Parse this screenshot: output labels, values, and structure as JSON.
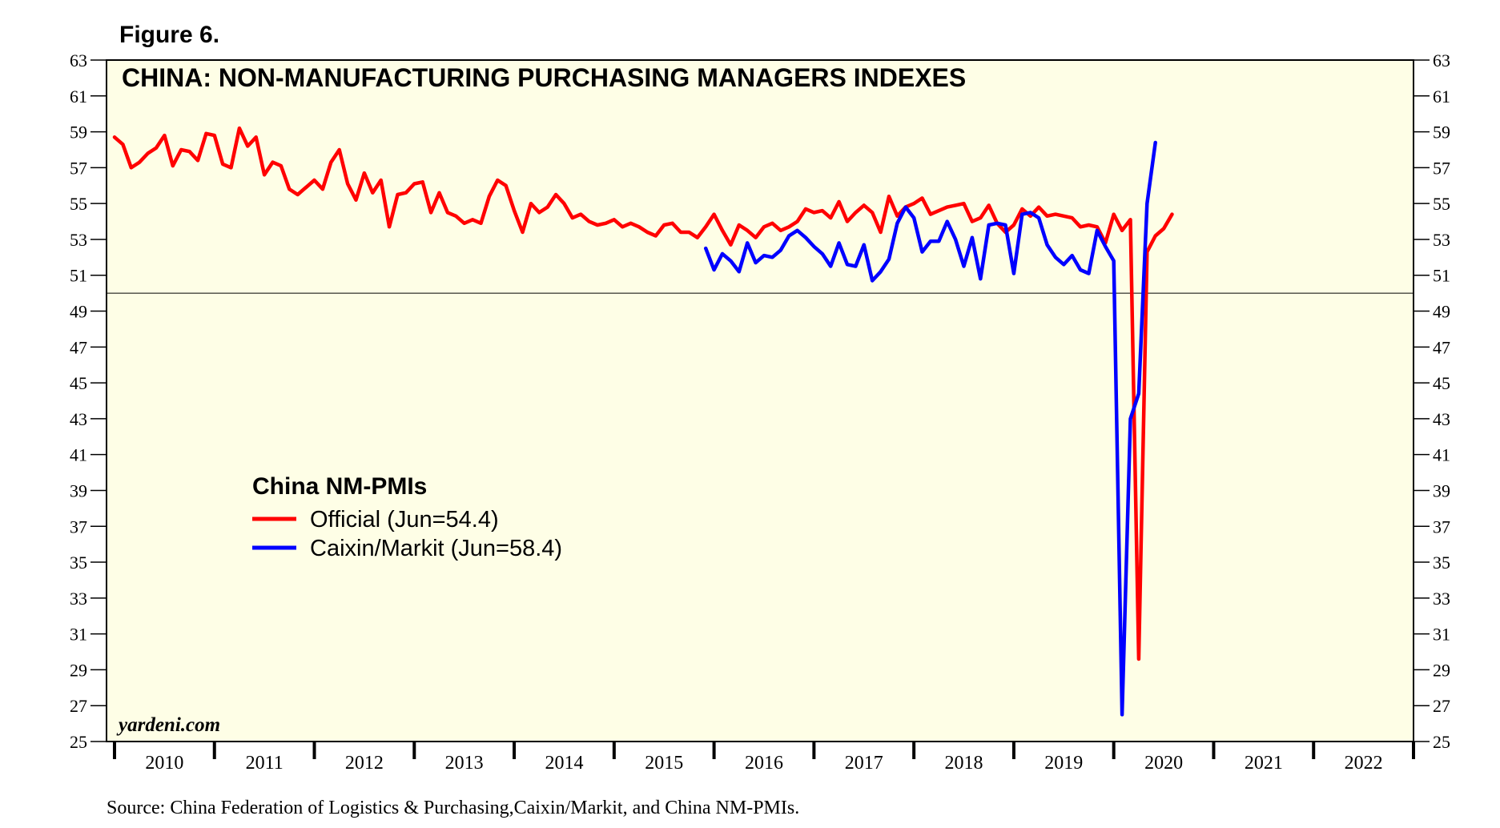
{
  "figure_label": "Figure 6.",
  "source": "Source: China Federation of Logistics & Purchasing,Caixin/Markit, and China NM-PMIs.",
  "watermark": "yardeni.com",
  "colors": {
    "plot_bg": "#fefee6",
    "official": "#ff0000",
    "caixin": "#0000ff",
    "reference": "#000000"
  },
  "chart_data": {
    "type": "line",
    "title": "CHINA: NON-MANUFACTURING PURCHASING MANAGERS INDEXES",
    "xlabel": "",
    "ylabel": "",
    "ylim": [
      25,
      63
    ],
    "xlim": [
      2009.92,
      2023.0
    ],
    "y_ticks": [
      63,
      61,
      59,
      57,
      55,
      53,
      51,
      49,
      47,
      45,
      43,
      41,
      39,
      37,
      35,
      33,
      31,
      29,
      27,
      25
    ],
    "year_labels": [
      "2010",
      "2011",
      "2012",
      "2013",
      "2014",
      "2015",
      "2016",
      "2017",
      "2018",
      "2019",
      "2020",
      "2021",
      "2022"
    ],
    "reference_line": 50,
    "legend": {
      "title": "China NM-PMIs",
      "entries": [
        "Official (Jun=54.4)",
        "Caixin/Markit (Jun=58.4)"
      ]
    },
    "series": [
      {
        "name": "Official",
        "color": "#ff0000",
        "start": 2010.0,
        "step": 0.0833333,
        "values": [
          58.7,
          58.3,
          57.0,
          57.3,
          57.8,
          58.1,
          58.8,
          57.1,
          58.0,
          57.9,
          57.4,
          58.9,
          58.8,
          57.2,
          57.0,
          59.2,
          58.2,
          58.7,
          56.6,
          57.3,
          57.1,
          55.8,
          55.5,
          55.9,
          56.3,
          55.8,
          57.3,
          58.0,
          56.1,
          55.2,
          56.7,
          55.6,
          56.3,
          53.7,
          55.5,
          55.6,
          56.1,
          56.2,
          54.5,
          55.6,
          54.5,
          54.3,
          53.9,
          54.1,
          53.9,
          55.4,
          56.3,
          56.0,
          54.6,
          53.4,
          55.0,
          54.5,
          54.8,
          55.5,
          55.0,
          54.2,
          54.4,
          54.0,
          53.8,
          53.9,
          54.1,
          53.7,
          53.9,
          53.7,
          53.4,
          53.2,
          53.8,
          53.9,
          53.4,
          53.4,
          53.1,
          53.7,
          54.4,
          53.5,
          52.7,
          53.8,
          53.5,
          53.1,
          53.7,
          53.9,
          53.5,
          53.7,
          54.0,
          54.7,
          54.5,
          54.6,
          54.2,
          55.1,
          54.0,
          54.5,
          54.9,
          54.5,
          53.4,
          55.4,
          54.3,
          54.8,
          55.0,
          55.3,
          54.4,
          54.6,
          54.8,
          54.9,
          55.0,
          54.0,
          54.2,
          54.9,
          53.9,
          53.4,
          53.8,
          54.7,
          54.3,
          54.8,
          54.3,
          54.4,
          54.3,
          54.2,
          53.7,
          53.8,
          53.7,
          52.8,
          54.4,
          53.5,
          54.1,
          29.6,
          52.3,
          53.2,
          53.6,
          54.4
        ]
      },
      {
        "name": "Caixin/Markit",
        "color": "#0000ff",
        "start": 2015.9167,
        "step": 0.0833333,
        "values": [
          52.5,
          51.3,
          52.2,
          51.8,
          51.2,
          52.8,
          51.7,
          52.1,
          52.0,
          52.4,
          53.2,
          53.5,
          53.1,
          52.6,
          52.2,
          51.5,
          52.8,
          51.6,
          51.5,
          52.7,
          50.7,
          51.2,
          51.9,
          53.9,
          54.8,
          54.2,
          52.3,
          52.9,
          52.9,
          54.0,
          53.0,
          51.5,
          53.1,
          50.8,
          53.8,
          53.9,
          53.8,
          51.1,
          54.4,
          54.5,
          54.2,
          52.7,
          52.0,
          51.6,
          52.1,
          51.3,
          51.1,
          53.5,
          52.6,
          51.8,
          26.5,
          43.0,
          44.4,
          55.0,
          58.4
        ]
      }
    ]
  }
}
